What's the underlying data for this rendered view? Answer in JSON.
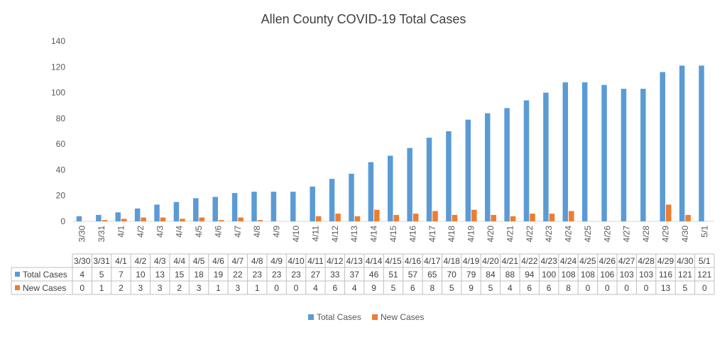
{
  "chart_data": {
    "type": "bar",
    "title": "Allen County COVID-19 Total Cases",
    "ylim": [
      0,
      140
    ],
    "yticks": [
      0,
      20,
      40,
      60,
      80,
      100,
      120,
      140
    ],
    "grid": false,
    "legend_position": "bottom",
    "categories": [
      "3/30",
      "3/31",
      "4/1",
      "4/2",
      "4/3",
      "4/4",
      "4/5",
      "4/6",
      "4/7",
      "4/8",
      "4/9",
      "4/10",
      "4/11",
      "4/12",
      "4/13",
      "4/14",
      "4/15",
      "4/16",
      "4/17",
      "4/18",
      "4/19",
      "4/20",
      "4/21",
      "4/22",
      "4/23",
      "4/24",
      "4/25",
      "4/26",
      "4/27",
      "4/28",
      "4/29",
      "4/30",
      "5/1"
    ],
    "series": [
      {
        "name": "Total Cases",
        "color": "#5B9BD5",
        "values": [
          4,
          5,
          7,
          10,
          13,
          15,
          18,
          19,
          22,
          23,
          23,
          23,
          27,
          33,
          37,
          46,
          51,
          57,
          65,
          70,
          79,
          84,
          88,
          94,
          100,
          108,
          108,
          106,
          103,
          103,
          116,
          121,
          121
        ]
      },
      {
        "name": "New Cases",
        "color": "#ED7D31",
        "values": [
          0,
          1,
          2,
          3,
          3,
          2,
          3,
          1,
          3,
          1,
          0,
          0,
          4,
          6,
          4,
          9,
          5,
          6,
          8,
          5,
          9,
          5,
          4,
          6,
          6,
          8,
          0,
          0,
          0,
          0,
          13,
          5,
          0
        ]
      }
    ]
  }
}
